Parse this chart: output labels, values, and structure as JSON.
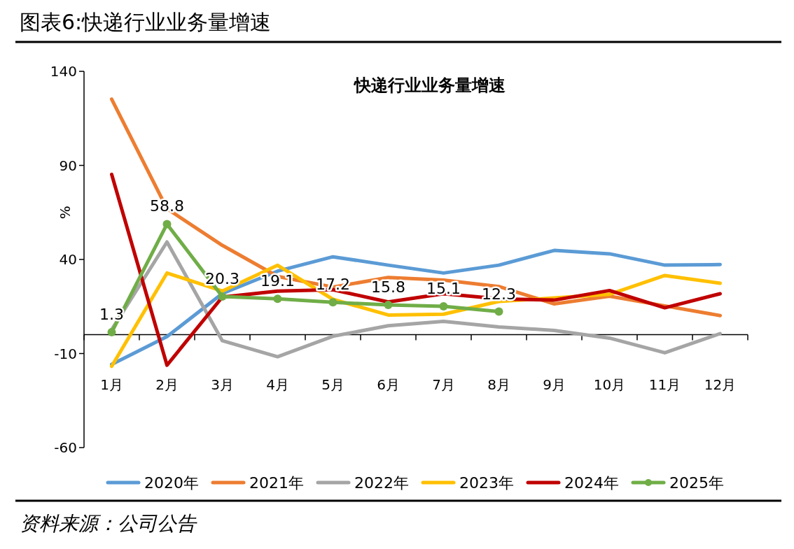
{
  "chart_data": {
    "type": "line",
    "title": "图表6:快递行业业务量增速",
    "subtitle": "快递行业业务量增速",
    "ylabel": "%",
    "categories": [
      "1月",
      "2月",
      "3月",
      "4月",
      "5月",
      "6月",
      "7月",
      "8月",
      "9月",
      "10月",
      "11月",
      "12月"
    ],
    "ylim": [
      -60,
      140
    ],
    "yticks": [
      -60,
      -10,
      40,
      90,
      140
    ],
    "grid": false,
    "legend": "bottom",
    "line_style": "solid",
    "series": [
      {
        "name": "2020年",
        "color": "#5b9bd5",
        "marker": "none",
        "values": [
          -15.8,
          -1,
          21.9,
          33.8,
          41.4,
          37,
          32.8,
          37,
          44.8,
          43,
          37,
          37.3
        ]
      },
      {
        "name": "2021年",
        "color": "#ed7d31",
        "marker": "none",
        "values": [
          125.2,
          67,
          47.5,
          31,
          25.3,
          30.4,
          29,
          25.6,
          16.4,
          20.5,
          15.3,
          10.2
        ]
      },
      {
        "name": "2022年",
        "color": "#a5a5a5",
        "marker": "none",
        "values": [
          2.7,
          49.3,
          -3.2,
          -11.7,
          -0.8,
          4.8,
          7.1,
          4.1,
          2.3,
          -1.8,
          -9.6,
          0.6
        ]
      },
      {
        "name": "2023年",
        "color": "#ffc000",
        "marker": "none",
        "values": [
          -16.8,
          32.8,
          23.2,
          36.9,
          18.8,
          10.5,
          10.9,
          17.7,
          19.5,
          21.5,
          31.5,
          27.4
        ]
      },
      {
        "name": "2024年",
        "color": "#c00000",
        "marker": "none",
        "values": [
          85.2,
          -16.2,
          20,
          23.2,
          23.9,
          17.4,
          21.8,
          19.1,
          18.4,
          23.5,
          14.3,
          21.8
        ]
      },
      {
        "name": "2025年",
        "color": "#70ad47",
        "marker": "circle",
        "data_labels": true,
        "values": [
          1.3,
          58.8,
          20.3,
          19.1,
          17.2,
          15.8,
          15.1,
          12.3,
          null,
          null,
          null,
          null
        ]
      }
    ],
    "annotations": [
      "资料来源：公司公告"
    ]
  }
}
